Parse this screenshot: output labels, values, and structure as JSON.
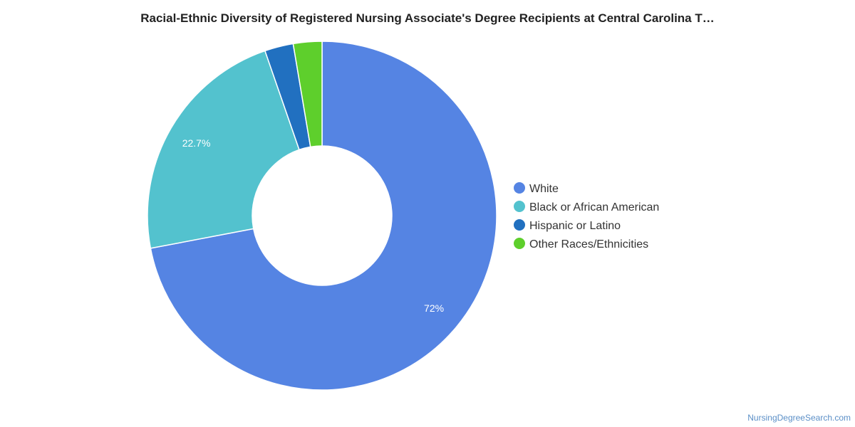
{
  "chart_data": {
    "type": "pie",
    "variant": "donut",
    "title": "Racial-Ethnic Diversity of Registered Nursing Associate's Degree Recipients at Central Carolina T…",
    "categories": [
      "White",
      "Black or African American",
      "Hispanic or Latino",
      "Other Races/Ethnicities"
    ],
    "values": [
      72,
      22.7,
      2.65,
      2.65
    ],
    "value_labels": [
      "72%",
      "22.7%",
      "",
      ""
    ],
    "colors": [
      "#5584e3",
      "#53c2ce",
      "#2170c0",
      "#5ecf2c"
    ],
    "legend_position": "right"
  },
  "credit": "NursingDegreeSearch.com"
}
